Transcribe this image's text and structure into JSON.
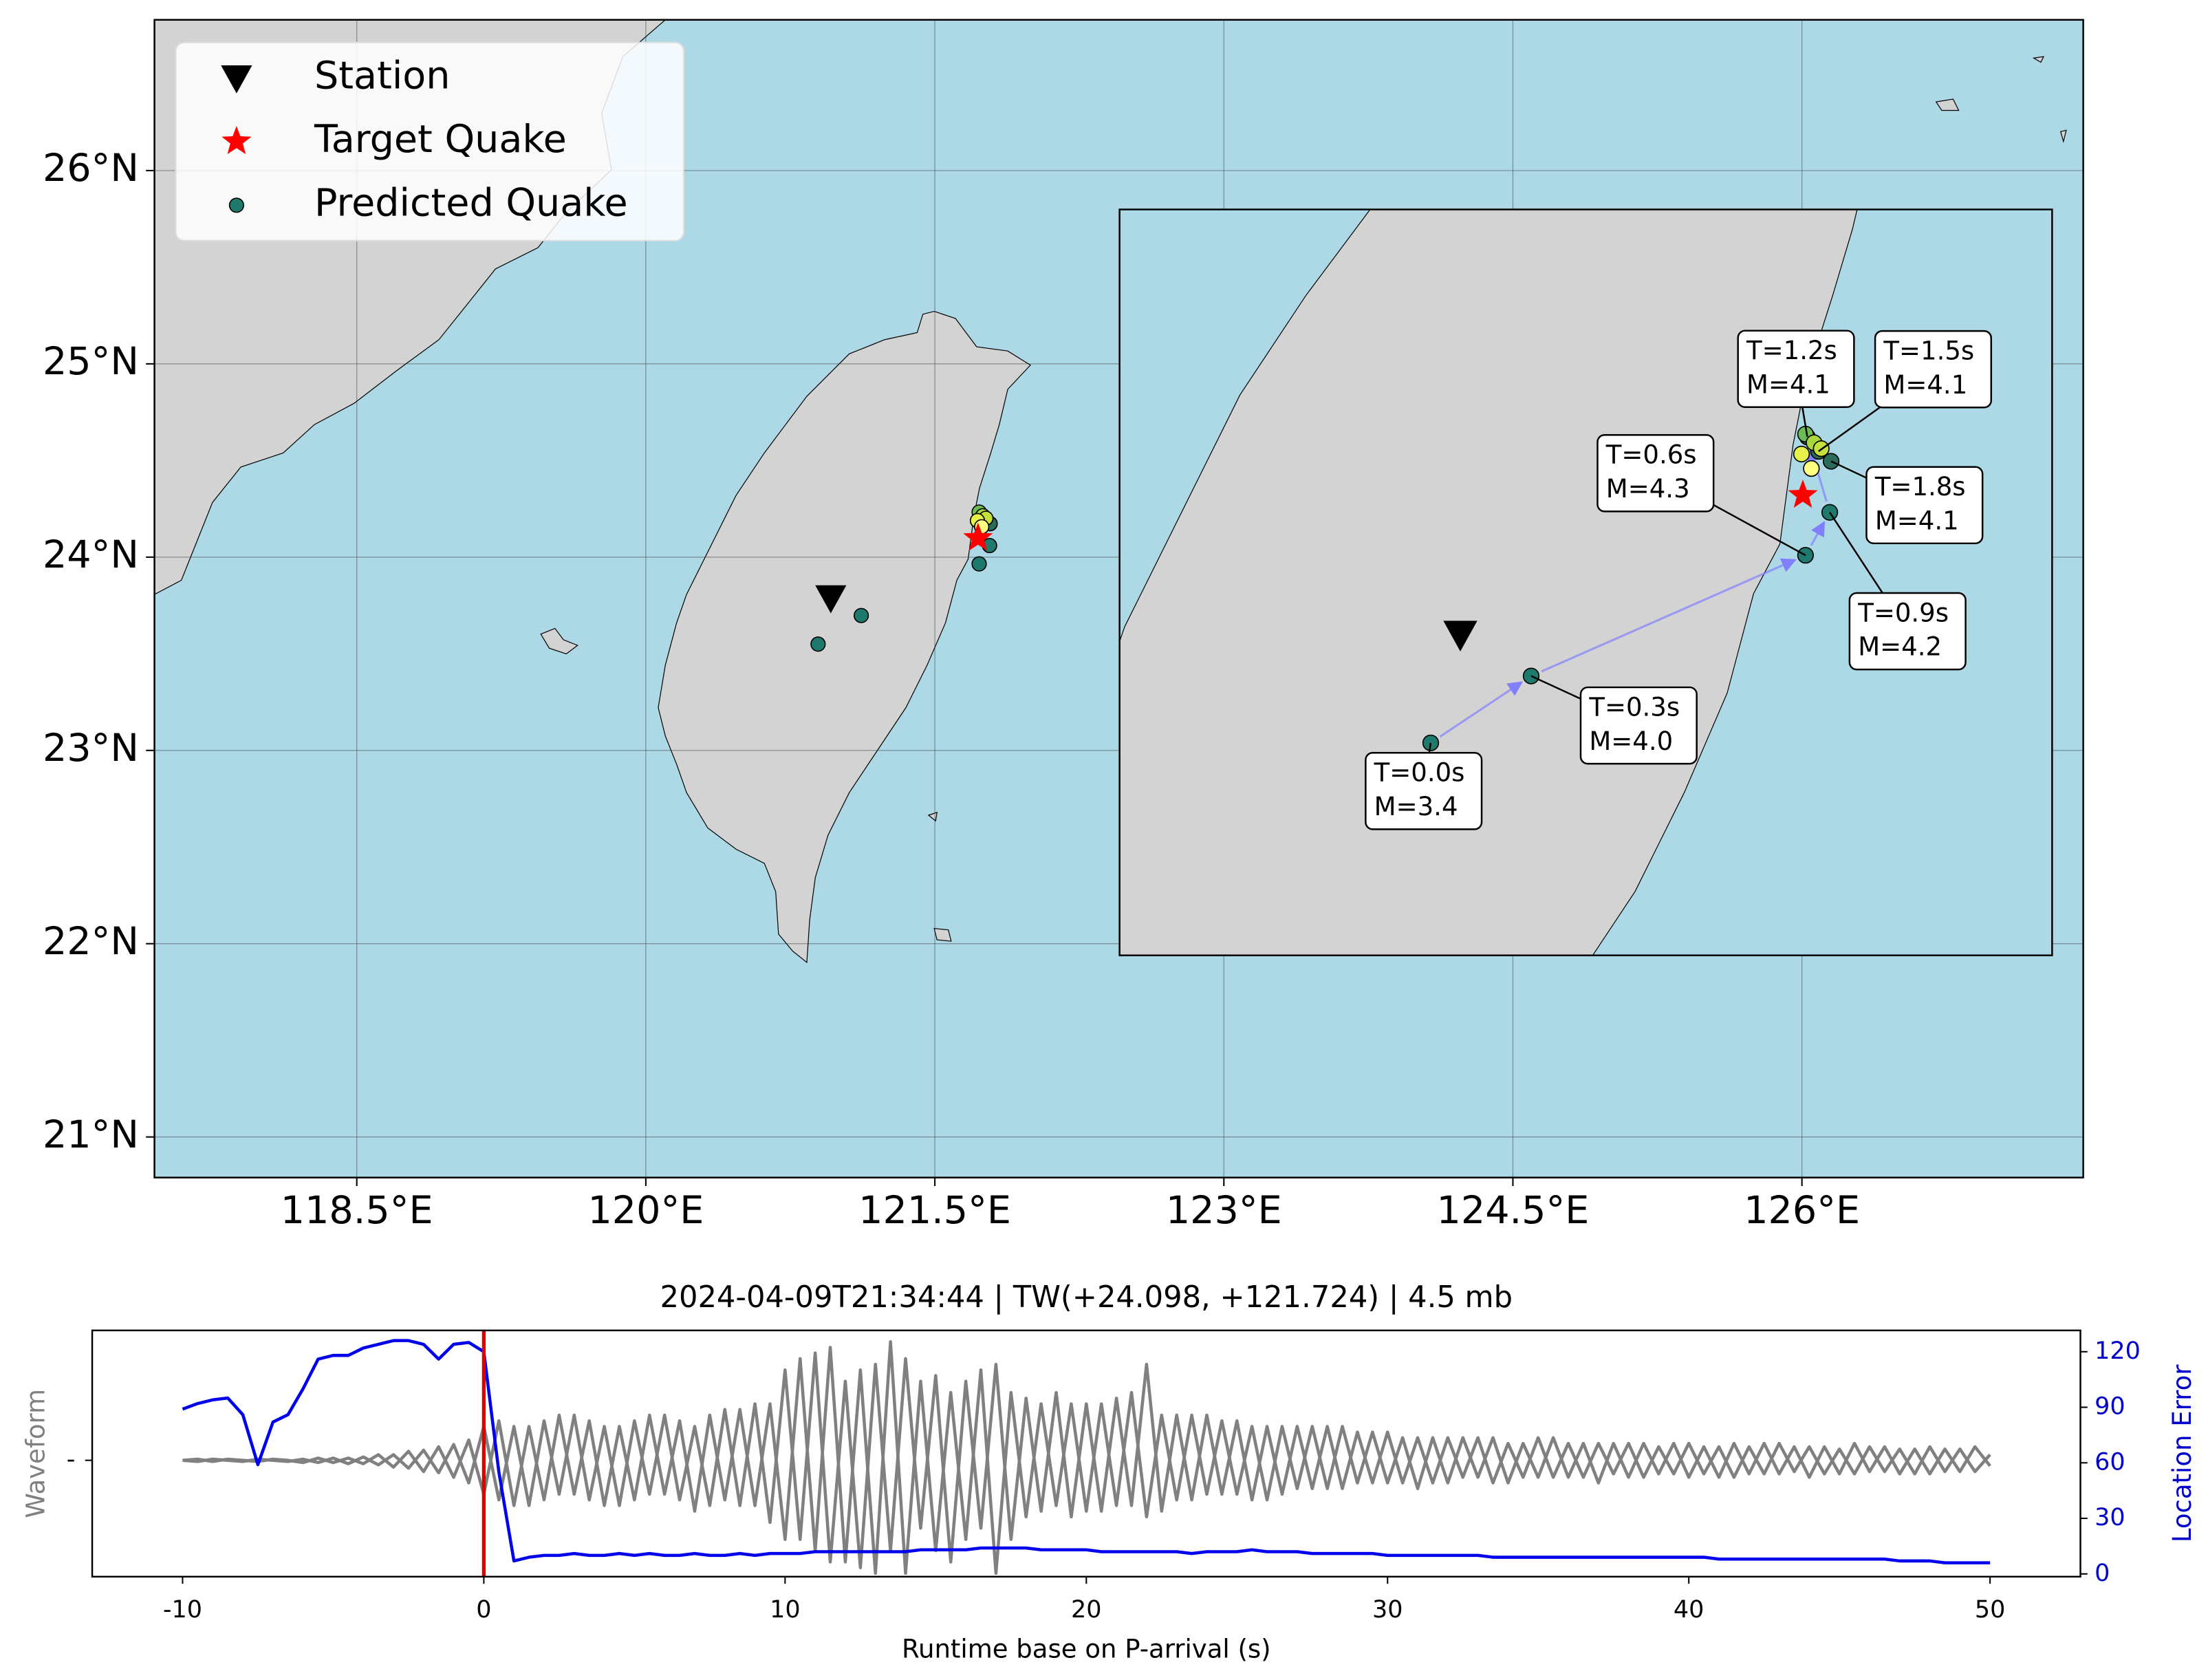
{
  "chart_data": [
    {
      "type": "map",
      "xlim": [
        117.45,
        127.46
      ],
      "ylim": [
        20.79,
        26.78
      ],
      "xticks": [
        {
          "value": 118.5,
          "label": "118.5°E"
        },
        {
          "value": 120,
          "label": "120°E"
        },
        {
          "value": 121.5,
          "label": "121.5°E"
        },
        {
          "value": 123,
          "label": "123°E"
        },
        {
          "value": 124.5,
          "label": "124.5°E"
        },
        {
          "value": 126,
          "label": "126°E"
        }
      ],
      "yticks": [
        {
          "value": 21,
          "label": "21°N"
        },
        {
          "value": 22,
          "label": "22°N"
        },
        {
          "value": 23,
          "label": "23°N"
        },
        {
          "value": 24,
          "label": "24°N"
        },
        {
          "value": 25,
          "label": "25°N"
        },
        {
          "value": 26,
          "label": "26°N"
        }
      ],
      "grid": true,
      "legend": "upper left",
      "station": {
        "name": "Station",
        "color": "#000000",
        "x": 120.96,
        "y": 23.79
      },
      "target": {
        "name": "Target Quake",
        "color": "#ff0000",
        "x": 121.724,
        "y": 24.098
      },
      "predicted": {
        "name": "Predicted Quake",
        "color": "#1f7a6e",
        "x": [
          120.894,
          121.118,
          121.73,
          121.784,
          121.734,
          121.759,
          121.787,
          121.73,
          121.749,
          121.765,
          121.721,
          121.743
        ],
        "y": [
          23.55,
          23.698,
          23.965,
          24.06,
          24.227,
          24.195,
          24.173,
          24.233,
          24.214,
          24.201,
          24.189,
          24.157
        ],
        "colors": [
          "#1f7a6e",
          "#1f7a6e",
          "#1f7a6e",
          "#1f7a6e",
          "#2a6b5a",
          "#2a6b5a",
          "#2a6b5a",
          "#6cbc55",
          "#a8d83c",
          "#c5e03a",
          "#e8f04a",
          "#ffff80"
        ],
        "labels": [
          [
            "T=0.0s",
            "M=3.4"
          ],
          [
            "T=0.3s",
            "M=4.0"
          ],
          [
            "T=0.6s",
            "M=4.3"
          ],
          [
            "T=0.9s",
            "M=4.2"
          ],
          [
            "T=1.2s",
            "M=4.1"
          ],
          [
            "T=1.5s",
            "M=4.1"
          ],
          [
            "T=1.8s",
            "M=4.1"
          ],
          null,
          null,
          null,
          null,
          null
        ]
      },
      "inset": {
        "xlim": [
          120.2,
          122.28
        ],
        "ylim": [
          23.08,
          24.73
        ]
      }
    },
    {
      "type": "line",
      "title": "2024-04-09T21:34:44 | TW(+24.098, +121.724) | 4.5  mb",
      "xlabel": "Runtime base on P-arrival (s)",
      "ylabel": "Waveform",
      "y2label": "Location Error",
      "xlim": [
        -13,
        53
      ],
      "xticks": [
        -10,
        0,
        10,
        20,
        30,
        40,
        50
      ],
      "ylim": [
        -1.03,
        1.15
      ],
      "yticks": [
        {
          "value": 0,
          "label": "-"
        }
      ],
      "y2lim": [
        -1.5,
        131.5
      ],
      "y2ticks": [
        0,
        30,
        60,
        90,
        120
      ],
      "vline": {
        "x": 0,
        "color": "#e00000"
      },
      "x": [
        -10,
        -9.5,
        -9,
        -8.5,
        -8,
        -7.5,
        -7,
        -6.5,
        -6,
        -5.5,
        -5,
        -4.5,
        -4,
        -3.5,
        -3,
        -2.5,
        -2,
        -1.5,
        -1,
        -0.5,
        0,
        0.5,
        1,
        1.5,
        2,
        2.5,
        3,
        3.5,
        4,
        4.5,
        5,
        5.5,
        6,
        6.5,
        7,
        7.5,
        8,
        8.5,
        9,
        9.5,
        10,
        10.5,
        11,
        11.5,
        12,
        12.5,
        13,
        13.5,
        14,
        14.5,
        15,
        15.5,
        16,
        16.5,
        17,
        17.5,
        18,
        18.5,
        19,
        19.5,
        20,
        20.5,
        21,
        21.5,
        22,
        22.5,
        23,
        23.5,
        24,
        24.5,
        25,
        25.5,
        26,
        26.5,
        27,
        27.5,
        28,
        28.5,
        29,
        29.5,
        30,
        30.5,
        31,
        31.5,
        32,
        32.5,
        33,
        33.5,
        34,
        34.5,
        35,
        35.5,
        36,
        36.5,
        37,
        37.5,
        38,
        38.5,
        39,
        39.5,
        40,
        40.5,
        41,
        41.5,
        42,
        42.5,
        43,
        43.5,
        44,
        44.5,
        45,
        45.5,
        46,
        46.5,
        47,
        47.5,
        48,
        48.5,
        49,
        49.5,
        50
      ],
      "series": [
        {
          "color": "#808080",
          "values": [
            0,
            0.01,
            -0.01,
            0.01,
            0,
            -0.01,
            0.01,
            0,
            -0.02,
            0.02,
            -0.02,
            0.02,
            -0.03,
            0.05,
            -0.06,
            0.08,
            -0.1,
            0.12,
            -0.15,
            0.18,
            -0.3,
            0.35,
            -0.4,
            0.3,
            -0.35,
            0.4,
            -0.3,
            0.35,
            -0.4,
            0.3,
            -0.35,
            0.4,
            -0.3,
            0.35,
            -0.45,
            0.4,
            -0.35,
            0.45,
            -0.4,
            0.5,
            -0.7,
            0.9,
            -0.8,
            1.0,
            -0.9,
            0.8,
            -1.0,
            1.05,
            -1.0,
            0.7,
            -0.8,
            0.6,
            -0.7,
            0.8,
            -1.0,
            0.6,
            -0.5,
            0.5,
            -0.4,
            0.5,
            -0.45,
            0.5,
            -0.4,
            0.6,
            -0.5,
            0.4,
            -0.35,
            0.4,
            -0.3,
            0.35,
            -0.3,
            0.3,
            -0.35,
            0.3,
            -0.25,
            0.3,
            -0.25,
            0.3,
            -0.2,
            0.25,
            -0.2,
            0.2,
            -0.25,
            0.2,
            -0.2,
            0.2,
            -0.15,
            0.2,
            -0.2,
            0.15,
            -0.15,
            0.2,
            -0.15,
            0.15,
            -0.2,
            0.15,
            -0.15,
            0.15,
            -0.12,
            0.15,
            -0.15,
            0.12,
            -0.15,
            0.15,
            -0.12,
            0.15,
            -0.12,
            0.12,
            -0.15,
            0.12,
            -0.12,
            0.15,
            -0.1,
            0.12,
            -0.12,
            0.1,
            -0.12,
            0.1,
            -0.1,
            0.12,
            -0.05
          ]
        },
        {
          "color": "#808080",
          "values": [
            0,
            -0.01,
            0.01,
            0,
            -0.01,
            0.01,
            0,
            -0.01,
            0.01,
            -0.02,
            0.02,
            -0.03,
            0.03,
            -0.04,
            0.05,
            -0.07,
            0.09,
            -0.11,
            0.14,
            -0.2,
            0.3,
            -0.35,
            0.3,
            -0.4,
            0.35,
            -0.3,
            0.4,
            -0.35,
            0.3,
            -0.4,
            0.35,
            -0.3,
            0.4,
            -0.35,
            0.3,
            -0.4,
            0.45,
            -0.4,
            0.5,
            -0.55,
            0.8,
            -0.7,
            0.95,
            -0.9,
            0.7,
            -0.95,
            0.85,
            -0.8,
            0.9,
            -0.6,
            0.75,
            -0.9,
            0.7,
            -0.6,
            0.85,
            -0.7,
            0.55,
            -0.45,
            0.6,
            -0.5,
            0.5,
            -0.45,
            0.55,
            -0.4,
            0.85,
            -0.45,
            0.4,
            -0.35,
            0.4,
            -0.3,
            0.35,
            -0.35,
            0.3,
            -0.3,
            0.3,
            -0.25,
            0.3,
            -0.25,
            0.25,
            -0.2,
            0.25,
            -0.2,
            0.2,
            -0.2,
            0.2,
            -0.15,
            0.2,
            -0.2,
            0.15,
            -0.15,
            0.2,
            -0.15,
            0.15,
            -0.15,
            0.15,
            -0.12,
            0.15,
            -0.15,
            0.12,
            -0.12,
            0.15,
            -0.12,
            0.12,
            -0.15,
            0.12,
            -0.12,
            0.15,
            -0.1,
            0.12,
            -0.12,
            0.1,
            -0.12,
            0.12,
            -0.1,
            0.1,
            -0.12,
            0.12,
            -0.1,
            0.1,
            -0.1,
            0.05
          ]
        },
        {
          "color": "#0000ee",
          "axis": "y2",
          "values": [
            89,
            92,
            94,
            95,
            86,
            59,
            82,
            86,
            100,
            116,
            118,
            118,
            122,
            124,
            126,
            126,
            124,
            116,
            124,
            125,
            120,
            55,
            7,
            9,
            10,
            10,
            11,
            10,
            10,
            11,
            10,
            11,
            10,
            10,
            11,
            10,
            10,
            11,
            10,
            11,
            11,
            11,
            12,
            12,
            12,
            12,
            12,
            12,
            12,
            13,
            13,
            13,
            13,
            14,
            14,
            14,
            14,
            13,
            13,
            13,
            13,
            12,
            12,
            12,
            12,
            12,
            12,
            11,
            12,
            12,
            12,
            13,
            12,
            12,
            12,
            11,
            11,
            11,
            11,
            11,
            10,
            10,
            10,
            10,
            10,
            10,
            10,
            9,
            9,
            9,
            9,
            9,
            9,
            9,
            9,
            9,
            9,
            9,
            9,
            9,
            9,
            9,
            8,
            8,
            8,
            8,
            8,
            8,
            8,
            8,
            8,
            8,
            8,
            8,
            7,
            7,
            7,
            6,
            6,
            6,
            6
          ]
        }
      ]
    }
  ]
}
